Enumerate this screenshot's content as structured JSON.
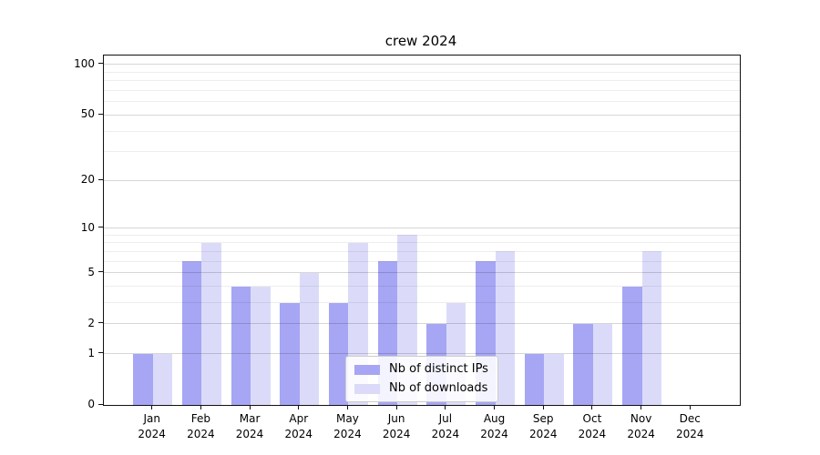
{
  "chart_data": {
    "type": "bar",
    "title": "crew 2024",
    "categories": [
      "Jan 2024",
      "Feb 2024",
      "Mar 2024",
      "Apr 2024",
      "May 2024",
      "Jun 2024",
      "Jul 2024",
      "Aug 2024",
      "Sep 2024",
      "Oct 2024",
      "Nov 2024",
      "Dec 2024"
    ],
    "series": [
      {
        "name": "Nb of distinct IPs",
        "color": "#a6a6f4",
        "values": [
          1,
          6,
          4,
          3,
          3,
          6,
          2,
          6,
          1,
          2,
          4,
          0
        ]
      },
      {
        "name": "Nb of downloads",
        "color": "#dbdbf9",
        "values": [
          1,
          8,
          4,
          5,
          8,
          9,
          3,
          7,
          1,
          2,
          7,
          0
        ]
      }
    ],
    "y_axis": {
      "scale": "log1p",
      "major_ticks": [
        0,
        1,
        2,
        5,
        10,
        20,
        50,
        100
      ],
      "minor_gridlines": [
        3,
        4,
        6,
        7,
        8,
        9,
        30,
        40,
        60,
        70,
        80,
        90
      ],
      "top_value": 113
    },
    "legend": {
      "position": "lower-center"
    },
    "grid": true,
    "axis_color": "#111111"
  }
}
